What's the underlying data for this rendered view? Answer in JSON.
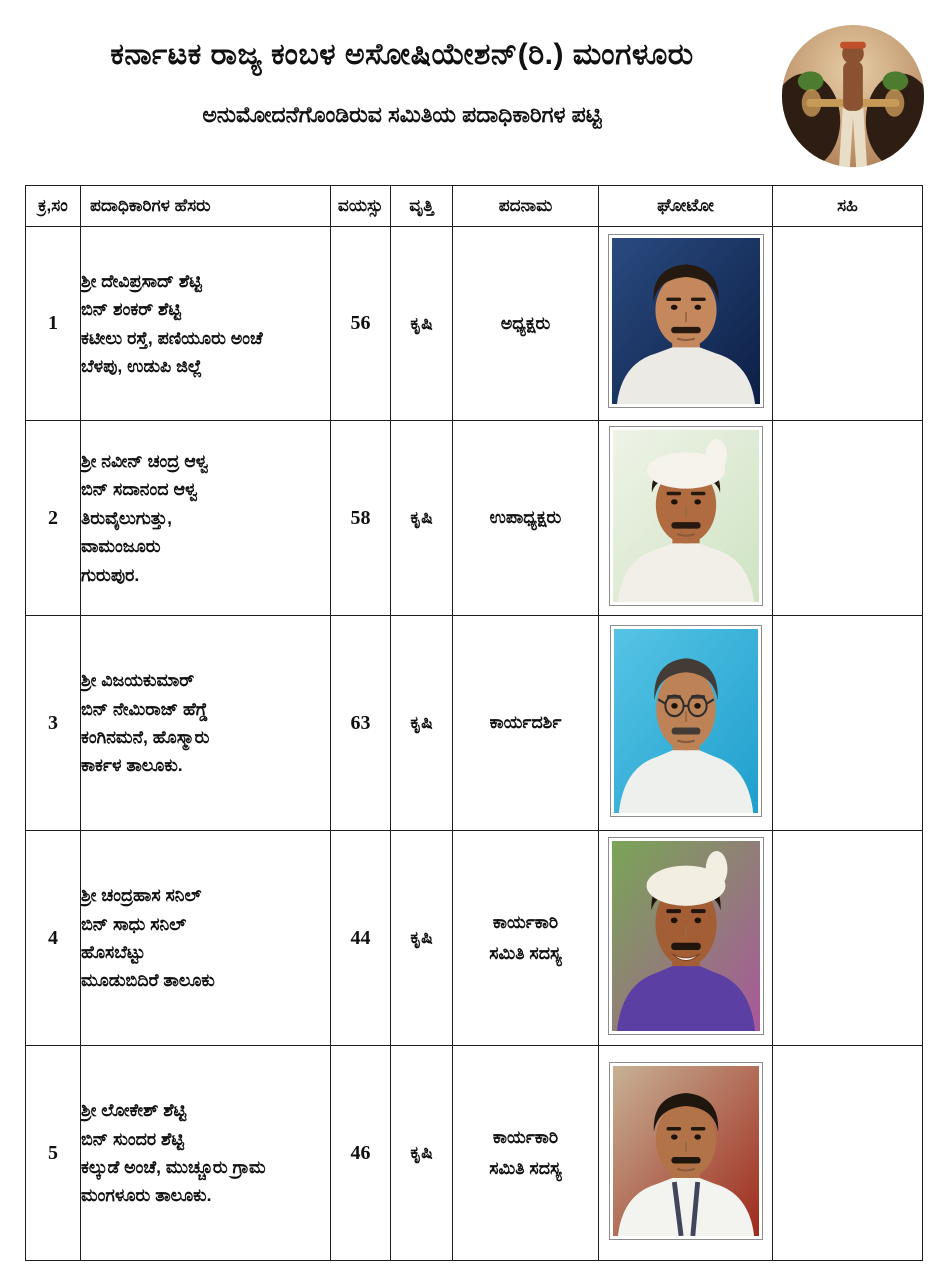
{
  "header": {
    "title": "ಕರ್ನಾಟಕ ರಾಜ್ಯ ಕಂಬಳ ಅಸೋಷಿಯೇಶನ್(ರಿ.) ಮಂಗಳೂರು",
    "subtitle": "ಅನುಮೋದನೆಗೊಂಡಿರುವ ಸಮಿತಿಯ ಪದಾಧಿಕಾರಿಗಳ ಪಟ್ಟಿ",
    "logo": {
      "desc": "kambala-buffalo-race-circular-photo",
      "palette": {
        "sky": "#e6cda6",
        "ground": "#a9744a",
        "buffalo": "#2e1d12",
        "leaf": "#4d7c30",
        "pole": "#c89a58",
        "man_skin": "#8a5231",
        "headband": "#c2502a",
        "dhoti": "#e8ddc6"
      }
    }
  },
  "table": {
    "columns": [
      "ಕ್ರ,ಸಂ",
      "ಪದಾಧಿಕಾರಿಗಳ ಹೆಸರು",
      "ವಯಸ್ಸು",
      "ವೃತ್ತಿ",
      "ಪದನಾಮ",
      "ಘೋಟೋ",
      "ಸಹಿ"
    ],
    "rows": [
      {
        "no": "1",
        "name_lines": [
          "ಶ್ರೀ ದೇವಿಪ್ರಸಾದ್ ಶೆಟ್ಟಿ",
          "ಬಿನ್ ಶಂಕರ್ ಶೆಟ್ಟಿ",
          "ಕಟೀಲು ರಸ್ತೆ, ಪಣಿಯೂರು ಅಂಚೆ",
          "ಬೆಳಪು, ಉಡುಪಿ ಜಿಲ್ಲೆ"
        ],
        "age": "56",
        "occupation": "ಕೃಷಿ",
        "designation_lines": [
          "ಅಧ್ಯಕ್ಷರು"
        ],
        "photo": {
          "desc": "portrait-man-mustache-white-shirt-dark-blue-studio-background",
          "bg": "#2a4a80",
          "bg2": "#0c1f45",
          "skin": "#c5885c",
          "hair": "#26190f",
          "shirt": "#eceae4",
          "headwear": null,
          "glasses": false,
          "smile": false,
          "lanyard": null
        }
      },
      {
        "no": "2",
        "name_lines": [
          "ಶ್ರೀ ನವೀನ್ ಚಂದ್ರ ಆಳ್ವ",
          "ಬಿನ್ ಸದಾನಂದ ಆಳ್ವ",
          "ತಿರುವೈಲುಗುತ್ತು,",
          "ವಾಮಂಜೂರು",
          "ಗುರುಪುರ."
        ],
        "age": "58",
        "occupation": "ಕೃಷಿ",
        "designation_lines": [
          "ಉಪಾಧ್ಯಕ್ಷರು"
        ],
        "photo": {
          "desc": "portrait-man-white-turban-light-green-background",
          "bg": "#eef3e7",
          "bg2": "#cfe3c4",
          "skin": "#b06b41",
          "hair": "#26190f",
          "shirt": "#f1efe8",
          "headwear": "#f6f3ec",
          "glasses": false,
          "smile": false,
          "lanyard": null
        }
      },
      {
        "no": "3",
        "name_lines": [
          "ಶ್ರೀ ವಿಜಯಕುಮಾರ್",
          "ಬಿನ್ ನೇಮಿರಾಜ್ ಹೆಗ್ಡೆ",
          "ಕಂಗಿನಮನೆ, ಹೊಸ್ಮಾರು",
          "ಕಾರ್ಕಳ ತಾಲೂಕು."
        ],
        "age": "63",
        "occupation": "ಕೃಷಿ",
        "designation_lines": [
          "ಕಾರ್ಯದರ್ಶಿ"
        ],
        "photo": {
          "desc": "portrait-man-glasses-mustache-white-shirt-cyan-background",
          "bg": "#56c4e5",
          "bg2": "#1f9fcd",
          "skin": "#bd8356",
          "hair": "#433c36",
          "shirt": "#edf0ec",
          "headwear": null,
          "glasses": true,
          "smile": false,
          "lanyard": null
        }
      },
      {
        "no": "4",
        "name_lines": [
          "ಶ್ರೀ ಚಂದ್ರಹಾಸ ಸನಿಲ್",
          "ಬಿನ್ ಸಾಧು ಸನಿಲ್",
          "ಹೊಸಬೆಟ್ಟು",
          "ಮೂಡುಬಿದಿರೆ ತಾಲೂಕು"
        ],
        "age": "44",
        "occupation": "ಕೃಷಿ",
        "designation_lines": [
          "ಕಾರ್ಯಕಾರಿ",
          "ಸಮಿತಿ ಸದಸ್ಯ"
        ],
        "photo": {
          "desc": "portrait-smiling-man-white-turban-purple-shirt-colorful-background",
          "bg": "#79a556",
          "bg2": "#a8589a",
          "skin": "#a35e36",
          "hair": "#20150d",
          "shirt": "#5b3fa3",
          "headwear": "#f2eee1",
          "glasses": false,
          "smile": true,
          "lanyard": null
        }
      },
      {
        "no": "5",
        "name_lines": [
          "ಶ್ರೀ ಲೋಕೇಶ್ ಶೆಟ್ಟಿ",
          "ಬಿನ್ ಸುಂದರ ಶೆಟ್ಟಿ",
          "ಕಲ್ಕುಡೆ ಅಂಚೆ, ಮುಚ್ಚೂರು ಗ್ರಾಮ",
          "ಮಂಗಳೂರು ತಾಲೂಕು."
        ],
        "age": "46",
        "occupation": "ಕೃಷಿ",
        "designation_lines": [
          "ಕಾರ್ಯಕಾರಿ",
          "ಸಮಿತಿ ಸದಸ್ಯ"
        ],
        "photo": {
          "desc": "portrait-man-white-shirt-lanyard-beige-red-background",
          "bg": "#c7b195",
          "bg2": "#9e2a1c",
          "skin": "#b27348",
          "hair": "#1f160e",
          "shirt": "#f3f3ef",
          "headwear": null,
          "glasses": false,
          "smile": false,
          "lanyard": "#41465c"
        }
      }
    ]
  },
  "colors": {
    "border": "#1d1d1d",
    "text": "#111111",
    "page_bg": "#ffffff",
    "photo_frame_border": "#8c8c8c"
  }
}
